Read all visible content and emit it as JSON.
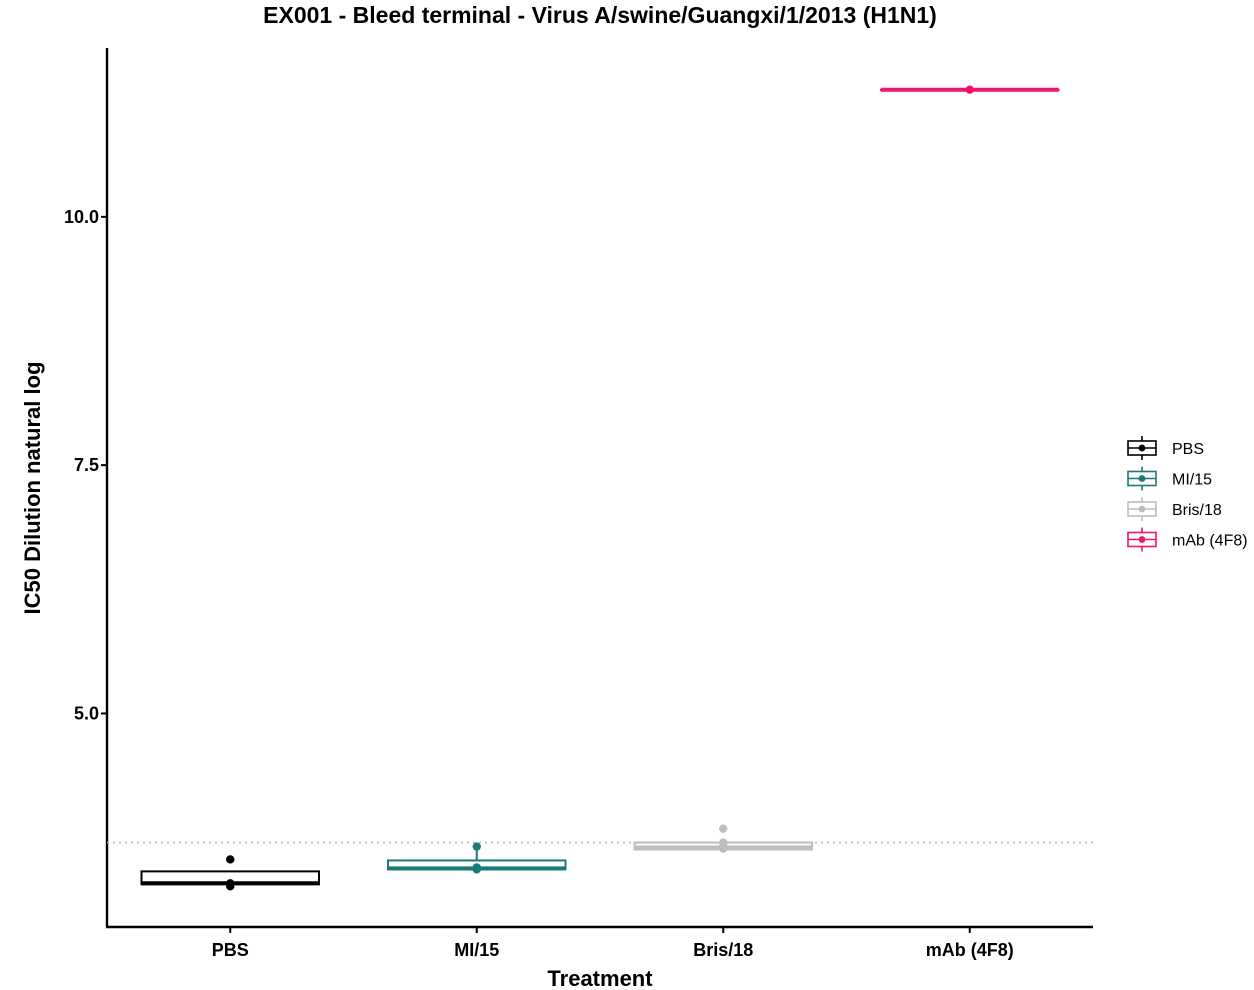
{
  "chart_data": {
    "type": "box",
    "title": "EX001 - Bleed terminal - Virus A/swine/Guangxi/1/2013 (H1N1)",
    "xlabel": "Treatment",
    "ylabel": "IC50 Dilution natural log",
    "categories": [
      "PBS",
      "MI/15",
      "Bris/18",
      "mAb (4F8)"
    ],
    "ylim": [
      2.85,
      11.7
    ],
    "yticks": [
      5.0,
      7.5,
      10.0
    ],
    "ytick_labels": [
      "5.0",
      "7.5",
      "10.0"
    ],
    "reference_line": 3.7,
    "grid": false,
    "legend_position": "right",
    "series": [
      {
        "name": "PBS",
        "color": "#000000",
        "q1": 3.28,
        "median": 3.29,
        "q3": 3.41,
        "whisker_low": 3.28,
        "whisker_high": 3.41,
        "points": [
          3.53,
          3.29,
          3.26
        ]
      },
      {
        "name": "MI/15",
        "color": "#1b7a78",
        "q1": 3.43,
        "median": 3.44,
        "q3": 3.52,
        "whisker_low": 3.43,
        "whisker_high": 3.66,
        "points": [
          3.66,
          3.45,
          3.43
        ]
      },
      {
        "name": "Bris/18",
        "color": "#bdbdbd",
        "q1": 3.63,
        "median": 3.65,
        "q3": 3.7,
        "whisker_low": 3.63,
        "whisker_high": 3.7,
        "points": [
          3.84,
          3.7,
          3.66,
          3.64
        ]
      },
      {
        "name": "mAb (4F8)",
        "color": "#f0146c",
        "q1": 11.28,
        "median": 11.28,
        "q3": 11.28,
        "whisker_low": 11.28,
        "whisker_high": 11.28,
        "points": [
          11.28
        ]
      }
    ]
  }
}
